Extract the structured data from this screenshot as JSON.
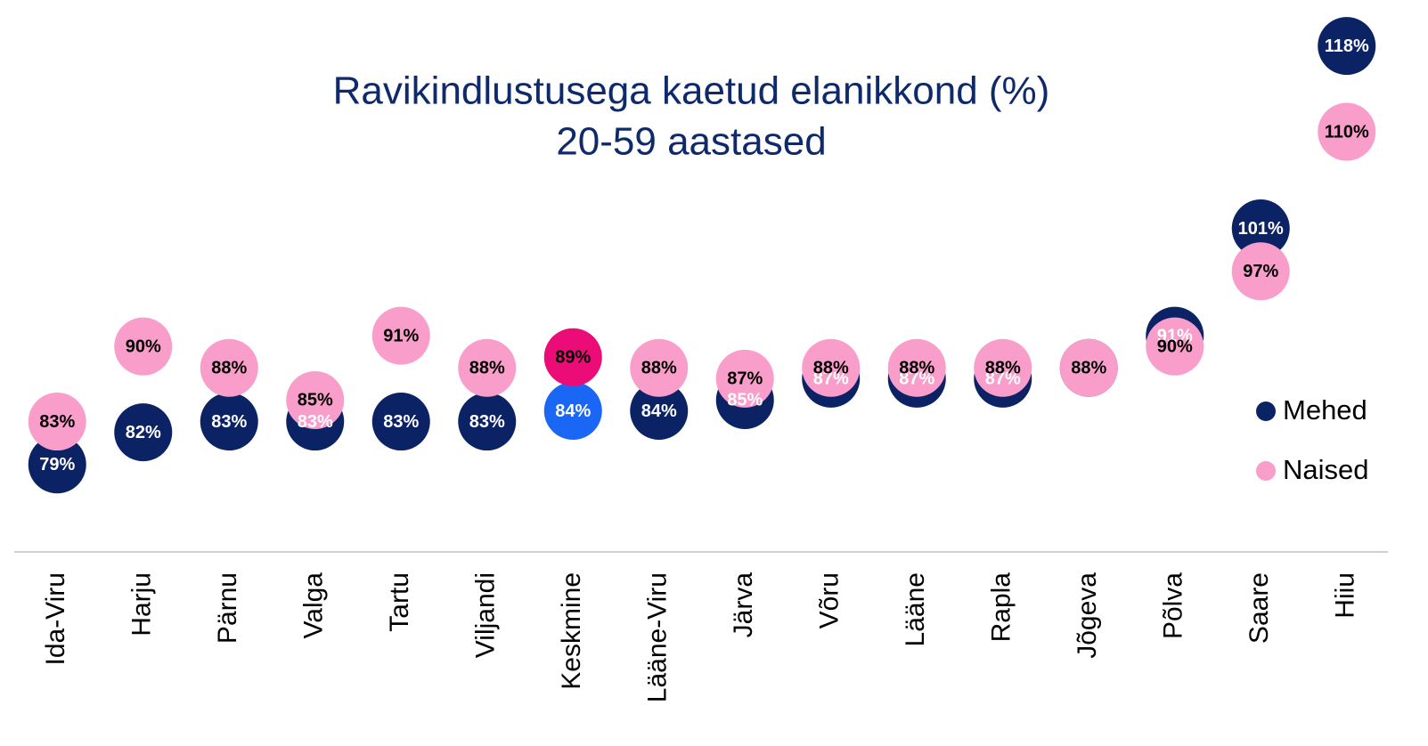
{
  "chart_data": {
    "type": "dot",
    "title": "Ravikindlustusega kaetud elanikkond (%)",
    "subtitle": "20-59 aastased",
    "categories": [
      "Ida-Viru",
      "Harju",
      "Pärnu",
      "Valga",
      "Tartu",
      "Viljandi",
      "Keskmine",
      "Lääne-Viru",
      "Järva",
      "Võru",
      "Lääne",
      "Rapla",
      "Jõgeva",
      "Põlva",
      "Saare",
      "Hiiu"
    ],
    "series": [
      {
        "name": "Mehed",
        "color": "#0b2265",
        "highlight_color": "#1a66f5",
        "label_color": "#ffffff",
        "values": [
          79,
          82,
          83,
          83,
          83,
          83,
          84,
          84,
          85,
          87,
          87,
          87,
          88,
          91,
          101,
          118
        ],
        "value_labels": [
          "79%",
          "82%",
          "83%",
          "83%",
          "83%",
          "83%",
          "84%",
          "84%",
          "85%",
          "87%",
          "87%",
          "87%",
          "88%",
          "91%",
          "101%",
          "118%"
        ]
      },
      {
        "name": "Naised",
        "color": "#f99dca",
        "highlight_color": "#ec0c77",
        "label_color": "#000000",
        "values": [
          83,
          90,
          88,
          85,
          91,
          88,
          89,
          88,
          87,
          88,
          88,
          88,
          88,
          90,
          97,
          110
        ],
        "value_labels": [
          "83%",
          "90%",
          "88%",
          "85%",
          "91%",
          "88%",
          "89%",
          "88%",
          "87%",
          "88%",
          "88%",
          "88%",
          "88%",
          "90%",
          "97%",
          "110%"
        ]
      }
    ],
    "highlight": "Keskmine",
    "ylim": [
      75,
      120
    ],
    "legend": "right"
  }
}
